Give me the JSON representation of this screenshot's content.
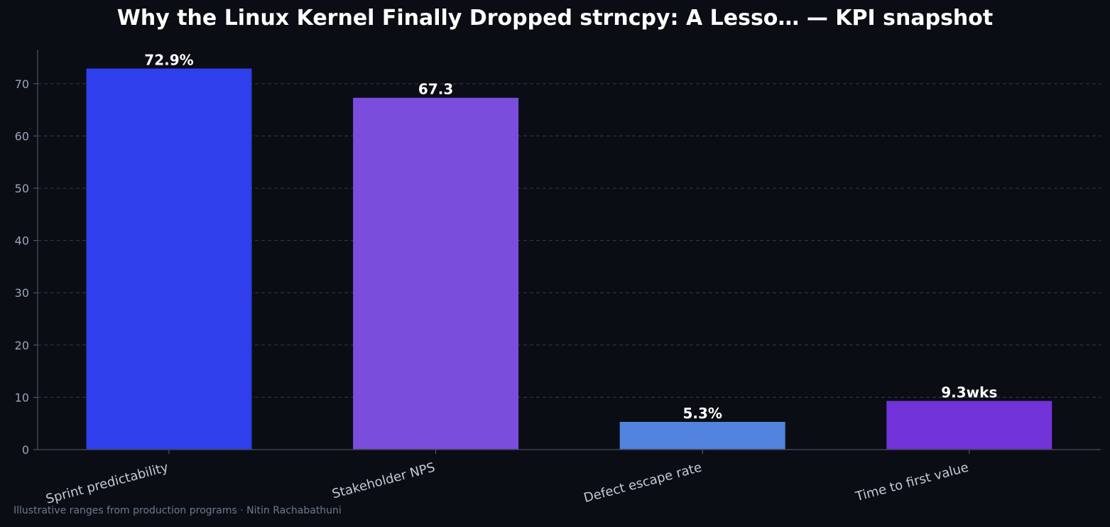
{
  "chart_data": {
    "type": "bar",
    "title": "Why the Linux Kernel Finally Dropped strncpy: A Lesso… — KPI snapshot",
    "categories": [
      "Sprint predictability",
      "Stakeholder NPS",
      "Defect escape rate",
      "Time to first value"
    ],
    "values": [
      72.9,
      67.3,
      5.3,
      9.3
    ],
    "data_labels": [
      "72.9%",
      "67.3",
      "5.3%",
      "9.3wks"
    ],
    "bar_colors": [
      "#2e3feb",
      "#7b4ddd",
      "#5283de",
      "#7233d9"
    ],
    "ylim": [
      0,
      76.5
    ],
    "yticks": [
      0,
      10,
      20,
      30,
      40,
      50,
      60,
      70
    ],
    "xlabel": "",
    "ylabel": "",
    "grid": true,
    "grid_axis": "y"
  },
  "footer": "Illustrative ranges from production programs · Nitin Rachabathuni"
}
